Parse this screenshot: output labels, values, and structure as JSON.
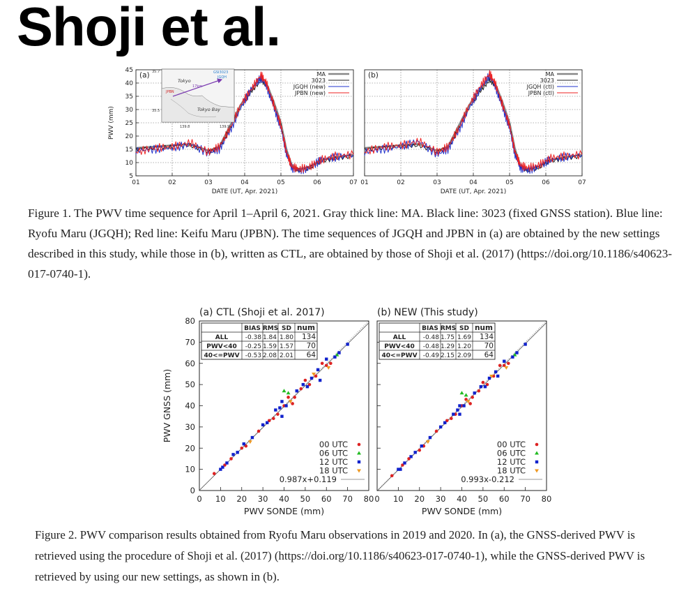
{
  "header": {
    "title": "Shoji et al."
  },
  "figure1": {
    "caption": "Figure 1. The PWV time sequence for April 1–April 6, 2021. Gray thick line: MA. Black line: 3023 (fixed GNSS station). Blue line: Ryofu Maru (JGQH); Red line: Keifu Maru (JPBN). The time sequences of JGQH and JPBN in (a) are obtained by the new settings described in this study, while those in (b), written as CTL, are obtained by those of Shoji et al. (2017) (https://doi.org/10.1186/s40623-017-0740-1).",
    "map": {
      "labels": [
        "Tokyo",
        "Tokyo Bay",
        "GSI3023",
        "JGQH",
        "JPBN"
      ],
      "lat_ticks": [
        "35.7",
        "35.5"
      ],
      "lon_ticks": [
        "139.8",
        "139.9"
      ],
      "dist_label": "17km"
    },
    "panels": [
      {
        "label": "(a)",
        "legend": [
          "MA",
          "3023",
          "JGQH (new)",
          "JPBN (new)"
        ]
      },
      {
        "label": "(b)",
        "legend": [
          "MA",
          "3023",
          "JGQH (ctl)",
          "JPBN (ctl)"
        ]
      }
    ],
    "colors": {
      "MA": "#888888",
      "3023": "#222222",
      "JGQH": "#2233cc",
      "JPBN": "#ee2222"
    }
  },
  "figure2": {
    "caption": "Figure 2. PWV comparison results obtained from Ryofu Maru observations in 2019 and 2020. In (a), the GNSS-derived PWV is retrieved using the procedure of Shoji et al. (2017) (https://doi.org/10.1186/s40623-017-0740-1), while the GNSS-derived PWV is retrieved by using our new settings, as shown in (b).",
    "panels": [
      {
        "title": "(a) CTL (Shoji et al. 2017)",
        "stats_header": [
          "",
          "BIAS",
          "RMS",
          "SD",
          "num"
        ],
        "stats_rows": [
          [
            "ALL",
            "-0.38",
            "1.84",
            "1.80",
            "134"
          ],
          [
            "PWV<40",
            "-0.25",
            "1.59",
            "1.57",
            "70"
          ],
          [
            "40<=PWV",
            "-0.53",
            "2.08",
            "2.01",
            "64"
          ]
        ],
        "legend": [
          "00 UTC",
          "06 UTC",
          "12 UTC",
          "18 UTC",
          "0.987x+0.119"
        ]
      },
      {
        "title": "(b) NEW (This study)",
        "stats_header": [
          "",
          "BIAS",
          "RMS",
          "SD",
          "num"
        ],
        "stats_rows": [
          [
            "ALL",
            "-0.48",
            "1.75",
            "1.69",
            "134"
          ],
          [
            "PWV<40",
            "-0.48",
            "1.29",
            "1.20",
            "70"
          ],
          [
            "40<=PWV",
            "-0.49",
            "2.15",
            "2.09",
            "64"
          ]
        ],
        "legend": [
          "00 UTC",
          "06 UTC",
          "12 UTC",
          "18 UTC",
          "0.993x-0.212"
        ]
      }
    ],
    "colors": {
      "00 UTC": "#dd2222",
      "06 UTC": "#22bb22",
      "12 UTC": "#1122cc",
      "18 UTC": "#ee9922",
      "fit": "#999999"
    }
  },
  "chart_data": [
    {
      "type": "line",
      "panel": "(a)",
      "xlabel": "DATE (UT, Apr. 2021)",
      "ylabel": "PWV (mm)",
      "x_ticks": [
        "01",
        "02",
        "03",
        "04",
        "05",
        "06",
        "07"
      ],
      "xlim": [
        1,
        7
      ],
      "ylim": [
        5,
        45
      ],
      "y_ticks": [
        5,
        10,
        15,
        20,
        25,
        30,
        35,
        40,
        45
      ],
      "x": [
        1.0,
        1.5,
        2.0,
        2.5,
        3.0,
        3.3,
        3.6,
        3.9,
        4.2,
        4.45,
        4.6,
        4.8,
        5.0,
        5.15,
        5.3,
        5.5,
        5.8,
        6.1,
        6.5,
        7.0
      ],
      "series": [
        {
          "name": "MA",
          "values": [
            15.5,
            16,
            16.5,
            17,
            14.5,
            16,
            24,
            32,
            38,
            42,
            40,
            33,
            25,
            15,
            9,
            7.5,
            8.5,
            11,
            12,
            13
          ]
        },
        {
          "name": "3023",
          "values": [
            15,
            15.5,
            16,
            16.5,
            14,
            15.5,
            23,
            31,
            37,
            41,
            39,
            32,
            24,
            14,
            8.5,
            7,
            8,
            10.5,
            11.5,
            12.5
          ]
        },
        {
          "name": "JGQH (new)",
          "values": [
            14.5,
            15,
            15.5,
            17,
            13.5,
            15,
            22,
            31,
            38,
            42,
            39,
            31,
            23,
            13.5,
            8,
            7,
            8,
            11,
            12,
            13
          ]
        },
        {
          "name": "JPBN (new)",
          "values": [
            14,
            15.5,
            16,
            17.5,
            14,
            16,
            23,
            32,
            38,
            43,
            40,
            32,
            24,
            14,
            8.5,
            7.5,
            8.5,
            11,
            12.5,
            13
          ]
        }
      ]
    },
    {
      "type": "line",
      "panel": "(b)",
      "xlabel": "DATE (UT, Apr. 2021)",
      "x_ticks": [
        "01",
        "02",
        "03",
        "04",
        "05",
        "06",
        "07"
      ],
      "xlim": [
        1,
        7
      ],
      "ylim": [
        5,
        45
      ],
      "x": [
        1.0,
        1.5,
        2.0,
        2.5,
        3.0,
        3.3,
        3.6,
        3.9,
        4.2,
        4.45,
        4.6,
        4.8,
        5.0,
        5.15,
        5.3,
        5.5,
        5.8,
        6.1,
        6.5,
        7.0
      ],
      "series": [
        {
          "name": "MA",
          "values": [
            15.5,
            16,
            16.5,
            17,
            14.5,
            16,
            24,
            32,
            38,
            42,
            40,
            33,
            25,
            15,
            9,
            7.5,
            8.5,
            11,
            12,
            13
          ]
        },
        {
          "name": "3023",
          "values": [
            15,
            15.5,
            16,
            16.5,
            14,
            15.5,
            23,
            31,
            37,
            41,
            39,
            32,
            24,
            14,
            8.5,
            7,
            8,
            10.5,
            11.5,
            12.5
          ]
        },
        {
          "name": "JGQH (ctl)",
          "values": [
            14,
            15,
            16,
            18,
            13,
            15,
            22,
            31,
            38,
            43,
            39,
            31,
            23,
            13,
            8,
            7,
            8.5,
            11,
            12,
            13
          ]
        },
        {
          "name": "JPBN (ctl)",
          "values": [
            14,
            16,
            16.5,
            18,
            14,
            16,
            23,
            32,
            39,
            43.5,
            40,
            32,
            24,
            14,
            9,
            8,
            9,
            11.5,
            12.5,
            13
          ]
        }
      ]
    },
    {
      "type": "scatter",
      "panel": "(a) CTL (Shoji et al. 2017)",
      "xlabel": "PWV SONDE (mm)",
      "ylabel": "PWV GNSS (mm)",
      "xlim": [
        0,
        80
      ],
      "ylim": [
        0,
        80
      ],
      "x_ticks": [
        0,
        10,
        20,
        30,
        40,
        50,
        60,
        70,
        80
      ],
      "y_ticks": [
        0,
        10,
        20,
        30,
        40,
        50,
        60,
        70,
        80
      ],
      "series": [
        {
          "name": "00 UTC",
          "points": [
            [
              7,
              8
            ],
            [
              12,
              12
            ],
            [
              15,
              15
            ],
            [
              20,
              20
            ],
            [
              22,
              21
            ],
            [
              28,
              28
            ],
            [
              33,
              33
            ],
            [
              37,
              36
            ],
            [
              40,
              40
            ],
            [
              42,
              44
            ],
            [
              45,
              44
            ],
            [
              48,
              48
            ],
            [
              50,
              52
            ],
            [
              55,
              54
            ],
            [
              58,
              60
            ],
            [
              60,
              59
            ],
            [
              62,
              60
            ],
            [
              44,
              41
            ],
            [
              52,
              50
            ],
            [
              35,
              34
            ]
          ]
        },
        {
          "name": "06 UTC",
          "points": [
            [
              40,
              47
            ],
            [
              42,
              46
            ],
            [
              65,
              64
            ]
          ]
        },
        {
          "name": "12 UTC",
          "points": [
            [
              10,
              10
            ],
            [
              11,
              11
            ],
            [
              13,
              13
            ],
            [
              16,
              17
            ],
            [
              18,
              18
            ],
            [
              21,
              22
            ],
            [
              25,
              25
            ],
            [
              30,
              31
            ],
            [
              32,
              32
            ],
            [
              36,
              38
            ],
            [
              38,
              39
            ],
            [
              39,
              42
            ],
            [
              41,
              40
            ],
            [
              46,
              47
            ],
            [
              49,
              50
            ],
            [
              51,
              49
            ],
            [
              53,
              53
            ],
            [
              56,
              57
            ],
            [
              60,
              62
            ],
            [
              64,
              63
            ],
            [
              66,
              65
            ],
            [
              70,
              69
            ],
            [
              57,
              52
            ],
            [
              39,
              35
            ]
          ]
        },
        {
          "name": "18 UTC",
          "points": [
            [
              24,
              23
            ],
            [
              43,
              42
            ],
            [
              54,
              55
            ],
            [
              61,
              58
            ]
          ]
        }
      ],
      "fit": {
        "name": "0.987x+0.119",
        "slope": 0.987,
        "intercept": 0.119
      }
    },
    {
      "type": "scatter",
      "panel": "(b) NEW (This study)",
      "xlabel": "PWV SONDE (mm)",
      "xlim": [
        0,
        80
      ],
      "ylim": [
        0,
        80
      ],
      "x_ticks": [
        0,
        10,
        20,
        30,
        40,
        50,
        60,
        70,
        80
      ],
      "y_ticks": [
        0,
        10,
        20,
        30,
        40,
        50,
        60,
        70,
        80
      ],
      "series": [
        {
          "name": "00 UTC",
          "points": [
            [
              7,
              7
            ],
            [
              12,
              12
            ],
            [
              15,
              15
            ],
            [
              20,
              19
            ],
            [
              22,
              21
            ],
            [
              28,
              28
            ],
            [
              33,
              33
            ],
            [
              37,
              36
            ],
            [
              40,
              40
            ],
            [
              42,
              43
            ],
            [
              45,
              44
            ],
            [
              48,
              47
            ],
            [
              50,
              51
            ],
            [
              55,
              54
            ],
            [
              58,
              59
            ],
            [
              60,
              59
            ],
            [
              62,
              60
            ],
            [
              44,
              41
            ],
            [
              52,
              50
            ],
            [
              35,
              34
            ]
          ]
        },
        {
          "name": "06 UTC",
          "points": [
            [
              40,
              46
            ],
            [
              42,
              45
            ],
            [
              65,
              64
            ]
          ]
        },
        {
          "name": "12 UTC",
          "points": [
            [
              10,
              10
            ],
            [
              11,
              10
            ],
            [
              13,
              13
            ],
            [
              16,
              16
            ],
            [
              18,
              18
            ],
            [
              21,
              21
            ],
            [
              25,
              25
            ],
            [
              30,
              30
            ],
            [
              32,
              32
            ],
            [
              36,
              36
            ],
            [
              38,
              38
            ],
            [
              39,
              40
            ],
            [
              41,
              40
            ],
            [
              46,
              46
            ],
            [
              49,
              49
            ],
            [
              51,
              49
            ],
            [
              53,
              53
            ],
            [
              56,
              56
            ],
            [
              60,
              61
            ],
            [
              64,
              63
            ],
            [
              66,
              65
            ],
            [
              70,
              69
            ],
            [
              57,
              54
            ],
            [
              39,
              36
            ]
          ]
        },
        {
          "name": "18 UTC",
          "points": [
            [
              24,
              23
            ],
            [
              43,
              42
            ],
            [
              54,
              54
            ],
            [
              61,
              58
            ]
          ]
        }
      ],
      "fit": {
        "name": "0.993x-0.212",
        "slope": 0.993,
        "intercept": -0.212
      }
    }
  ]
}
